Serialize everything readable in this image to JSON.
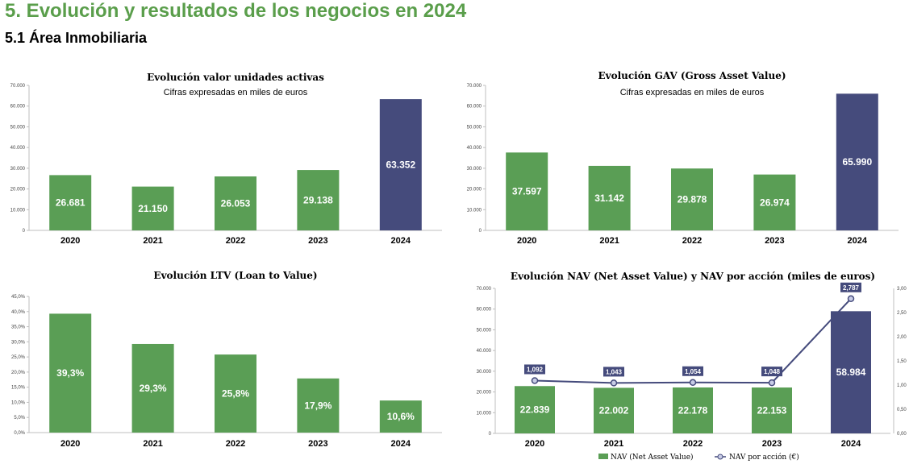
{
  "header": {
    "title": "5. Evolución y resultados de los negocios en 2024",
    "subtitle": "5.1 Área Inmobiliaria"
  },
  "colors": {
    "bar": "#5a9e55",
    "highlight": "#454b7c",
    "line": "#454b7c",
    "heading": "#5a9e4b"
  },
  "chart_data": [
    {
      "id": "units",
      "type": "bar",
      "title": "Evolución valor unidades activas",
      "subtitle": "Cifras expresadas en miles de euros",
      "categories": [
        "2020",
        "2021",
        "2022",
        "2023",
        "2024"
      ],
      "values": [
        26681,
        21150,
        26053,
        29138,
        63352
      ],
      "value_labels": [
        "26.681",
        "21.150",
        "26.053",
        "29.138",
        "63.352"
      ],
      "yticks": [
        "0",
        "10.000",
        "20.000",
        "30.000",
        "40.000",
        "50.000",
        "60.000",
        "70.000"
      ],
      "ylim": [
        0,
        70000
      ],
      "highlight_index": 4
    },
    {
      "id": "gav",
      "type": "bar",
      "title": "Evolución GAV (Gross Asset Value)",
      "subtitle": "Cifras expresadas en miles de euros",
      "categories": [
        "2020",
        "2021",
        "2022",
        "2023",
        "2024"
      ],
      "values": [
        37597,
        31142,
        29878,
        26974,
        65990
      ],
      "value_labels": [
        "37.597",
        "31.142",
        "29.878",
        "26.974",
        "65.990"
      ],
      "yticks": [
        "0",
        "10.000",
        "20.000",
        "30.000",
        "40.000",
        "50.000",
        "60.000",
        "70.000"
      ],
      "ylim": [
        0,
        70000
      ],
      "highlight_index": 4
    },
    {
      "id": "ltv",
      "type": "bar",
      "title": "Evolución LTV (Loan to Value)",
      "subtitle": "",
      "categories": [
        "2020",
        "2021",
        "2022",
        "2023",
        "2024"
      ],
      "values": [
        39.3,
        29.3,
        25.8,
        17.9,
        10.6
      ],
      "value_labels": [
        "39,3%",
        "29,3%",
        "25,8%",
        "17,9%",
        "10,6%"
      ],
      "yticks": [
        "0,0%",
        "5,0%",
        "10,0%",
        "15,0%",
        "20,0%",
        "25,0%",
        "30,0%",
        "35,0%",
        "40,0%",
        "45,0%"
      ],
      "ylim": [
        0,
        45
      ],
      "highlight_index": -1
    },
    {
      "id": "nav",
      "type": "bar+line",
      "title": "Evolución NAV (Net Asset Value) y NAV por acción  (miles de euros)",
      "subtitle": "",
      "categories": [
        "2020",
        "2021",
        "2022",
        "2023",
        "2024"
      ],
      "values": [
        22839,
        22002,
        22178,
        22153,
        58984
      ],
      "value_labels": [
        "22.839",
        "22.002",
        "22.178",
        "22.153",
        "58.984"
      ],
      "yticks": [
        "0",
        "10.000",
        "20.000",
        "30.000",
        "40.000",
        "50.000",
        "60.000",
        "70.000"
      ],
      "ylim": [
        0,
        70000
      ],
      "highlight_index": 4,
      "line_values": [
        1.092,
        1.043,
        1.054,
        1.048,
        2.787
      ],
      "line_labels": [
        "1,092",
        "1,043",
        "1,054",
        "1,048",
        "2,787"
      ],
      "y2ticks": [
        "0,00",
        "0,50",
        "1,00",
        "1,50",
        "2,00",
        "2,50",
        "3,00"
      ],
      "y2lim": [
        0,
        3
      ],
      "legend": [
        "NAV (Net Asset Value)",
        "NAV por acción (€)"
      ]
    }
  ]
}
